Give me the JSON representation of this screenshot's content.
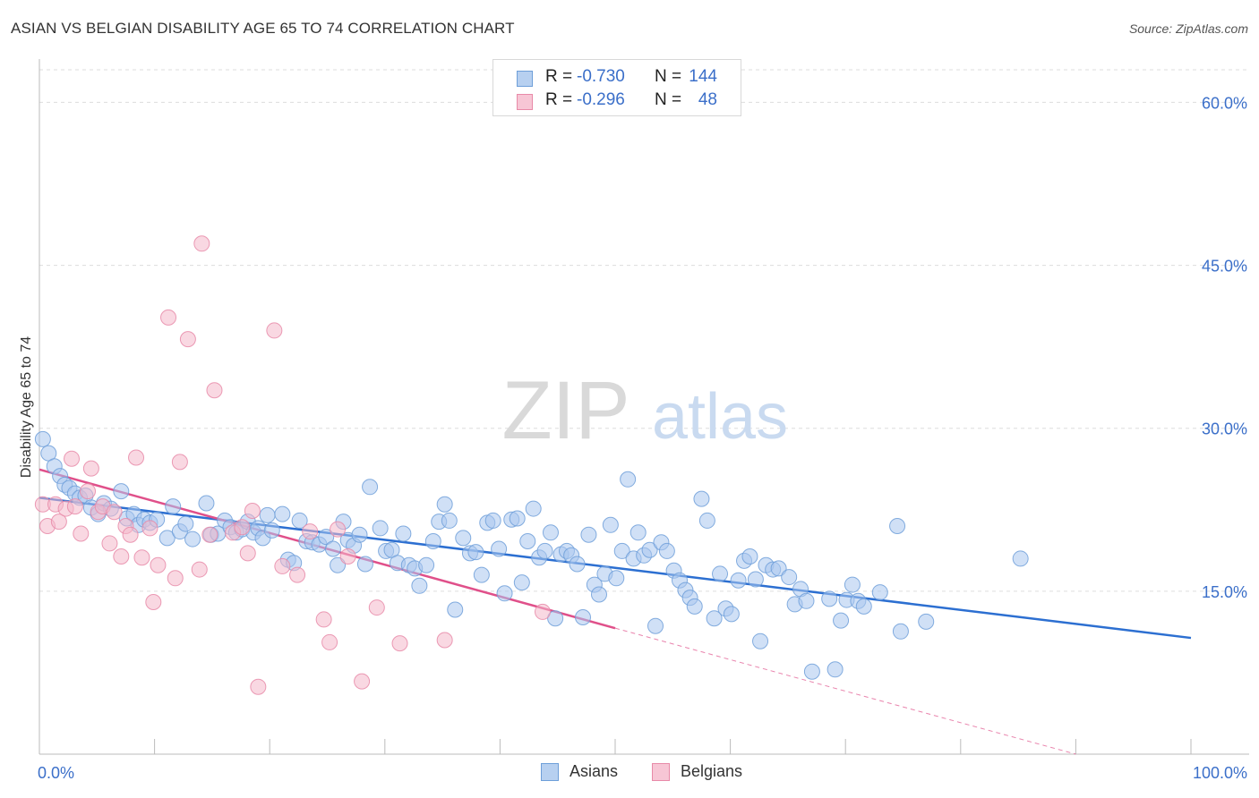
{
  "title": "ASIAN VS BELGIAN DISABILITY AGE 65 TO 74 CORRELATION CHART",
  "source": "Source: ZipAtlas.com",
  "watermark": {
    "zip": "ZIP",
    "atlas": "atlas"
  },
  "legend_top": [
    {
      "r_label": "R =",
      "r_value": "-0.730",
      "n_label": "N =",
      "n_value": "144"
    },
    {
      "r_label": "R =",
      "r_value": "-0.296",
      "n_label": "N =",
      "n_value": "48"
    }
  ],
  "legend_bottom": [
    {
      "label": "Asians"
    },
    {
      "label": "Belgians"
    }
  ],
  "colors": {
    "asian_fill": "#a9c7ee",
    "asian_stroke": "#6e9fd9",
    "asian_line": "#2c6fd1",
    "belgian_fill": "#f4b8cb",
    "belgian_stroke": "#e88aa8",
    "belgian_line": "#e0508a",
    "axis_text": "#3b6fc9",
    "grid": "#dddddd"
  },
  "chart_data": {
    "type": "scatter",
    "title": "ASIAN VS BELGIAN DISABILITY AGE 65 TO 74 CORRELATION CHART",
    "xlabel": "",
    "ylabel": "Disability Age 65 to 74",
    "xlim": [
      0,
      100
    ],
    "ylim": [
      0,
      63
    ],
    "x_tick_labels": [
      "0.0%",
      "100.0%"
    ],
    "y_ticks": [
      15,
      30,
      45,
      60
    ],
    "y_tick_labels": [
      "15.0%",
      "30.0%",
      "45.0%",
      "60.0%"
    ],
    "grid": true,
    "legend_position": "top-center",
    "series": [
      {
        "name": "Asians",
        "points": [
          [
            0.3,
            29
          ],
          [
            0.8,
            27.7
          ],
          [
            1.3,
            26.5
          ],
          [
            1.8,
            25.6
          ],
          [
            2.2,
            24.8
          ],
          [
            2.6,
            24.5
          ],
          [
            3.1,
            24
          ],
          [
            3.5,
            23.6
          ],
          [
            4,
            23.8
          ],
          [
            4.5,
            22.7
          ],
          [
            5.1,
            22.1
          ],
          [
            5.6,
            23.1
          ],
          [
            6.2,
            22.6
          ],
          [
            7.1,
            24.2
          ],
          [
            7.6,
            21.7
          ],
          [
            8.2,
            22.1
          ],
          [
            8.6,
            21.1
          ],
          [
            9.1,
            21.6
          ],
          [
            9.6,
            21.3
          ],
          [
            10.2,
            21.6
          ],
          [
            11.1,
            19.9
          ],
          [
            11.6,
            22.8
          ],
          [
            12.2,
            20.5
          ],
          [
            12.7,
            21.2
          ],
          [
            13.3,
            19.8
          ],
          [
            14.5,
            23.1
          ],
          [
            14.9,
            20.2
          ],
          [
            15.5,
            20.3
          ],
          [
            16.1,
            21.5
          ],
          [
            16.6,
            20.9
          ],
          [
            17.1,
            20.4
          ],
          [
            17.6,
            20.7
          ],
          [
            18.1,
            21.4
          ],
          [
            18.6,
            20.4
          ],
          [
            19,
            20.8
          ],
          [
            19.4,
            19.9
          ],
          [
            19.8,
            22
          ],
          [
            20.2,
            20.6
          ],
          [
            21.1,
            22.1
          ],
          [
            21.6,
            17.9
          ],
          [
            22.1,
            17.6
          ],
          [
            22.6,
            21.5
          ],
          [
            23.2,
            19.6
          ],
          [
            23.7,
            19.5
          ],
          [
            24.3,
            19.3
          ],
          [
            24.9,
            20
          ],
          [
            25.5,
            18.9
          ],
          [
            25.9,
            17.4
          ],
          [
            26.4,
            21.4
          ],
          [
            26.8,
            19.7
          ],
          [
            27.3,
            19.2
          ],
          [
            27.8,
            20.2
          ],
          [
            28.3,
            17.5
          ],
          [
            28.7,
            24.6
          ],
          [
            29.6,
            20.8
          ],
          [
            30.1,
            18.7
          ],
          [
            30.6,
            18.8
          ],
          [
            31.1,
            17.6
          ],
          [
            31.6,
            20.3
          ],
          [
            32.1,
            17.4
          ],
          [
            32.6,
            17.1
          ],
          [
            33,
            15.5
          ],
          [
            33.6,
            17.4
          ],
          [
            34.2,
            19.6
          ],
          [
            34.7,
            21.4
          ],
          [
            35.2,
            23
          ],
          [
            35.6,
            21.5
          ],
          [
            36.1,
            13.3
          ],
          [
            36.8,
            19.9
          ],
          [
            37.4,
            18.5
          ],
          [
            37.9,
            18.6
          ],
          [
            38.4,
            16.5
          ],
          [
            38.9,
            21.3
          ],
          [
            39.4,
            21.5
          ],
          [
            39.9,
            18.9
          ],
          [
            40.4,
            14.8
          ],
          [
            41,
            21.6
          ],
          [
            41.5,
            21.7
          ],
          [
            41.9,
            15.8
          ],
          [
            42.4,
            19.6
          ],
          [
            42.9,
            22.6
          ],
          [
            43.4,
            18.1
          ],
          [
            43.9,
            18.7
          ],
          [
            44.4,
            20.4
          ],
          [
            44.8,
            12.5
          ],
          [
            45.3,
            18.4
          ],
          [
            45.8,
            18.7
          ],
          [
            46.2,
            18.3
          ],
          [
            46.7,
            17.5
          ],
          [
            47.2,
            12.6
          ],
          [
            47.7,
            20.2
          ],
          [
            48.2,
            15.6
          ],
          [
            48.6,
            14.7
          ],
          [
            49.1,
            16.6
          ],
          [
            49.6,
            21.1
          ],
          [
            50.1,
            16.2
          ],
          [
            50.6,
            18.7
          ],
          [
            51.1,
            25.3
          ],
          [
            51.6,
            18
          ],
          [
            52,
            20.4
          ],
          [
            52.5,
            18.3
          ],
          [
            53,
            18.8
          ],
          [
            53.5,
            11.8
          ],
          [
            54,
            19.5
          ],
          [
            54.5,
            18.7
          ],
          [
            55.1,
            16.9
          ],
          [
            55.6,
            16
          ],
          [
            56.1,
            15.1
          ],
          [
            56.5,
            14.4
          ],
          [
            56.9,
            13.6
          ],
          [
            57.5,
            23.5
          ],
          [
            58,
            21.5
          ],
          [
            58.6,
            12.5
          ],
          [
            59.1,
            16.6
          ],
          [
            59.6,
            13.4
          ],
          [
            60.1,
            12.9
          ],
          [
            60.7,
            16
          ],
          [
            61.2,
            17.8
          ],
          [
            61.7,
            18.2
          ],
          [
            62.2,
            16.1
          ],
          [
            62.6,
            10.4
          ],
          [
            63.1,
            17.4
          ],
          [
            63.7,
            17
          ],
          [
            64.2,
            17.1
          ],
          [
            65.1,
            16.3
          ],
          [
            65.6,
            13.8
          ],
          [
            66.1,
            15.2
          ],
          [
            66.6,
            14.1
          ],
          [
            67.1,
            7.6
          ],
          [
            68.6,
            14.3
          ],
          [
            69.1,
            7.8
          ],
          [
            69.6,
            12.3
          ],
          [
            70.1,
            14.2
          ],
          [
            70.6,
            15.6
          ],
          [
            71.1,
            14.1
          ],
          [
            71.6,
            13.6
          ],
          [
            73,
            14.9
          ],
          [
            74.5,
            21
          ],
          [
            74.8,
            11.3
          ],
          [
            77,
            12.2
          ],
          [
            85.2,
            18
          ]
        ],
        "trend": {
          "x": [
            0,
            100
          ],
          "y": [
            23.6,
            10.7
          ],
          "style": "solid"
        }
      },
      {
        "name": "Belgians",
        "points": [
          [
            0.3,
            23
          ],
          [
            0.7,
            21
          ],
          [
            1.4,
            23
          ],
          [
            1.7,
            21.4
          ],
          [
            2.3,
            22.6
          ],
          [
            2.8,
            27.2
          ],
          [
            3.1,
            22.8
          ],
          [
            3.6,
            20.3
          ],
          [
            4.2,
            24.2
          ],
          [
            4.5,
            26.3
          ],
          [
            5.1,
            22.3
          ],
          [
            5.5,
            22.8
          ],
          [
            6.1,
            19.4
          ],
          [
            6.5,
            22.3
          ],
          [
            7.1,
            18.2
          ],
          [
            7.5,
            21
          ],
          [
            7.9,
            20.2
          ],
          [
            8.4,
            27.3
          ],
          [
            8.9,
            18.1
          ],
          [
            9.6,
            20.8
          ],
          [
            9.9,
            14
          ],
          [
            10.3,
            17.4
          ],
          [
            11.2,
            40.2
          ],
          [
            11.8,
            16.2
          ],
          [
            12.2,
            26.9
          ],
          [
            12.9,
            38.2
          ],
          [
            13.9,
            17
          ],
          [
            14.1,
            47
          ],
          [
            14.8,
            20.2
          ],
          [
            15.2,
            33.5
          ],
          [
            16.8,
            20.4
          ],
          [
            17.6,
            20.9
          ],
          [
            18.1,
            18.5
          ],
          [
            18.5,
            22.4
          ],
          [
            19,
            6.2
          ],
          [
            20.4,
            39
          ],
          [
            21.1,
            17.3
          ],
          [
            22.4,
            16.5
          ],
          [
            23.5,
            20.5
          ],
          [
            24.7,
            12.4
          ],
          [
            25.2,
            10.3
          ],
          [
            25.9,
            20.7
          ],
          [
            26.8,
            18.2
          ],
          [
            28,
            6.7
          ],
          [
            29.3,
            13.5
          ],
          [
            31.3,
            10.2
          ],
          [
            35.2,
            10.5
          ],
          [
            43.7,
            13.1
          ]
        ],
        "trend": {
          "x": [
            0,
            50
          ],
          "y": [
            26.2,
            11.6
          ],
          "style": "solid",
          "extension": {
            "x": [
              50,
              90
            ],
            "y": [
              11.6,
              0
            ]
          }
        }
      }
    ]
  }
}
